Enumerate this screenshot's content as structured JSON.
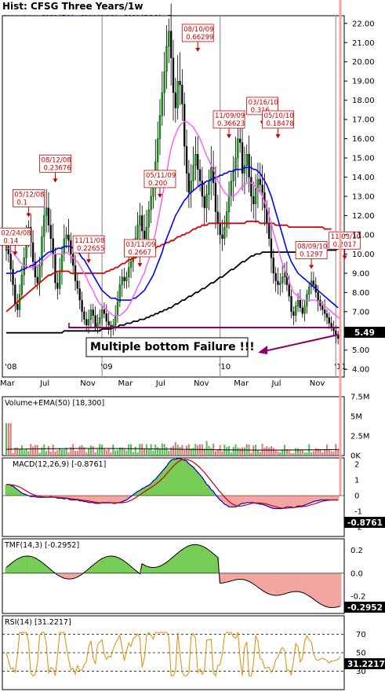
{
  "chart_title": "Hist: CFSG Three Years/1w",
  "legend": [
    {
      "label": "SMA(20)",
      "color": "#ff55ff"
    },
    {
      "label": "SMA(50)",
      "color": "#0000ff"
    },
    {
      "label": "SMA(100)",
      "color": "#dd0000"
    },
    {
      "label": "SMA(200)",
      "color": "#000000"
    },
    {
      "label": "Earn",
      "color": "#cc0000"
    }
  ],
  "callout": "Multiple bottom Failure !!!",
  "last_price_label": "5.49",
  "colors": {
    "up": "#00aa00",
    "down": "#000000",
    "border": "#000000",
    "grid": "#888888"
  },
  "chart_data": {
    "type": "line",
    "price_axis": {
      "ylim": [
        3.6,
        22.4
      ],
      "ticks": [
        "4.00",
        "5.00",
        "6.00",
        "7.00",
        "8.00",
        "9.00",
        "10.00",
        "11.00",
        "12.00",
        "13.00",
        "14.00",
        "15.00",
        "16.00",
        "17.00",
        "18.00",
        "19.00",
        "20.00",
        "21.00",
        "22.00"
      ]
    },
    "x_ticks": [
      {
        "label": "'08",
        "week": 0
      },
      {
        "label": "Mar",
        "week": 0
      },
      {
        "label": "Jul",
        "week": 18
      },
      {
        "label": "Nov",
        "week": 36
      },
      {
        "label": "'09",
        "week": 43
      },
      {
        "label": "Mar",
        "week": 53
      },
      {
        "label": "Jul",
        "week": 70
      },
      {
        "label": "Nov",
        "week": 87
      },
      {
        "label": "'10",
        "week": 96
      },
      {
        "label": "Mar",
        "week": 105
      },
      {
        "label": "Jul",
        "week": 122
      },
      {
        "label": "Nov",
        "week": 139
      },
      {
        "label": "'11",
        "week": 148
      }
    ],
    "close": [
      10.4,
      10.0,
      9.2,
      8.4,
      7.4,
      7.1,
      7.9,
      8.9,
      9.8,
      10.9,
      11.4,
      10.6,
      9.6,
      8.8,
      8.5,
      9.4,
      10.9,
      12.0,
      12.4,
      11.5,
      10.8,
      10.0,
      8.5,
      8.2,
      9.1,
      10.0,
      10.8,
      11.0,
      10.7,
      10.0,
      9.4,
      8.6,
      8.2,
      7.6,
      7.0,
      6.6,
      6.3,
      6.6,
      7.1,
      6.8,
      6.2,
      6.4,
      6.7,
      7.1,
      6.9,
      6.5,
      6.3,
      6.1,
      6.3,
      6.8,
      7.5,
      8.4,
      8.8,
      8.6,
      8.8,
      9.3,
      9.6,
      10.2,
      10.8,
      11.5,
      12.0,
      11.2,
      10.8,
      11.4,
      12.3,
      13.0,
      13.6,
      14.8,
      16.0,
      17.2,
      18.4,
      19.5,
      20.8,
      21.6,
      20.2,
      18.4,
      17.6,
      19.0,
      18.8,
      17.8,
      15.6,
      14.2,
      13.2,
      13.8,
      14.6,
      15.2,
      14.4,
      13.8,
      13.0,
      12.4,
      13.1,
      13.8,
      14.5,
      13.7,
      12.2,
      11.6,
      11.0,
      10.8,
      11.4,
      12.2,
      13.0,
      13.8,
      14.4,
      15.0,
      16.0,
      15.8,
      14.2,
      14.6,
      15.2,
      14.0,
      13.0,
      12.6,
      13.4,
      13.9,
      13.6,
      13.2,
      12.4,
      11.6,
      10.8,
      9.8,
      9.0,
      8.6,
      8.4,
      8.5,
      8.8,
      9.0,
      8.4,
      7.8,
      7.0,
      6.8,
      7.3,
      7.6,
      7.2,
      6.9,
      7.3,
      7.9,
      8.3,
      8.6,
      8.4,
      8.0,
      7.6,
      7.3,
      7.1,
      6.9,
      6.7,
      6.4,
      6.2,
      6.0,
      5.8,
      5.6,
      5.49
    ],
    "sma20": [
      10.3,
      10.3,
      10.2,
      10.1,
      9.9,
      9.8,
      9.6,
      9.5,
      9.4,
      9.4,
      9.3,
      9.3,
      9.3,
      9.4,
      9.4,
      9.5,
      9.6,
      9.7,
      9.8,
      9.9,
      10.0,
      10.0,
      10.0,
      10.0,
      10.0,
      10.0,
      10.0,
      10.1,
      10.0,
      9.9,
      9.8,
      9.7,
      9.6,
      9.4,
      9.2,
      9.0,
      8.8,
      8.5,
      8.3,
      8.1,
      7.8,
      7.6,
      7.4,
      7.3,
      7.2,
      7.1,
      7.0,
      6.9,
      6.8,
      6.8,
      6.8,
      6.8,
      6.9,
      7.0,
      7.1,
      7.3,
      7.5,
      7.8,
      8.0,
      8.3,
      8.5,
      8.8,
      9.0,
      9.4,
      9.7,
      10.1,
      10.6,
      11.1,
      11.7,
      12.3,
      12.9,
      13.6,
      14.2,
      14.9,
      15.5,
      15.9,
      16.2,
      16.5,
      16.7,
      16.8,
      16.9,
      16.9,
      16.8,
      16.7,
      16.6,
      16.4,
      16.2,
      16.0,
      15.7,
      15.4,
      15.1,
      14.9,
      14.6,
      14.4,
      14.1,
      13.8,
      13.6,
      13.4,
      13.2,
      13.1,
      13.0,
      13.0,
      13.0,
      13.1,
      13.2,
      13.4,
      13.5,
      13.6,
      13.7,
      13.7,
      13.7,
      13.6,
      13.5,
      13.4,
      13.2,
      13.0,
      12.7,
      12.4,
      12.0,
      11.6,
      11.1,
      10.7,
      10.3,
      9.9,
      9.5,
      9.2,
      8.9,
      8.6,
      8.3,
      8.0,
      7.9,
      7.8,
      7.7,
      7.6,
      7.6,
      7.6,
      7.6,
      7.6,
      7.6,
      7.6,
      7.5,
      7.5,
      7.4,
      7.3,
      7.2,
      7.1,
      7.0,
      6.9,
      6.8,
      6.7,
      6.6
    ],
    "sma50": [
      9.0,
      9.0,
      9.0,
      9.0,
      9.0,
      9.1,
      9.1,
      9.2,
      9.2,
      9.3,
      9.3,
      9.4,
      9.4,
      9.5,
      9.6,
      9.7,
      9.8,
      9.9,
      10.0,
      10.1,
      10.1,
      10.2,
      10.2,
      10.3,
      10.3,
      10.3,
      10.4,
      10.4,
      10.4,
      10.4,
      10.3,
      10.2,
      10.1,
      10.0,
      9.8,
      9.7,
      9.5,
      9.3,
      9.1,
      8.9,
      8.7,
      8.5,
      8.3,
      8.1,
      8.0,
      7.9,
      7.8,
      7.7,
      7.7,
      7.7,
      7.6,
      7.6,
      7.6,
      7.6,
      7.6,
      7.6,
      7.6,
      7.7,
      7.7,
      7.8,
      7.9,
      8.0,
      8.1,
      8.3,
      8.5,
      8.7,
      8.9,
      9.2,
      9.5,
      9.8,
      10.1,
      10.5,
      10.8,
      11.1,
      11.4,
      11.7,
      12.0,
      12.2,
      12.4,
      12.6,
      12.8,
      12.9,
      13.1,
      13.2,
      13.3,
      13.4,
      13.5,
      13.6,
      13.6,
      13.7,
      13.8,
      13.8,
      13.9,
      13.9,
      14.0,
      14.0,
      14.1,
      14.1,
      14.2,
      14.2,
      14.3,
      14.3,
      14.3,
      14.4,
      14.4,
      14.4,
      14.4,
      14.5,
      14.5,
      14.5,
      14.5,
      14.4,
      14.4,
      14.3,
      14.2,
      14.0,
      13.8,
      13.6,
      13.3,
      13.0,
      12.6,
      12.2,
      11.8,
      11.4,
      11.0,
      10.6,
      10.2,
      9.9,
      9.6,
      9.4,
      9.2,
      9.0,
      8.9,
      8.8,
      8.7,
      8.6,
      8.5,
      8.4,
      8.3,
      8.2,
      8.1,
      8.0,
      7.9,
      7.8,
      7.7,
      7.6,
      7.5,
      7.4,
      7.3,
      7.2
    ],
    "sma100": [
      7.0,
      7.1,
      7.2,
      7.3,
      7.4,
      7.5,
      7.6,
      7.7,
      7.8,
      7.9,
      8.0,
      8.1,
      8.2,
      8.3,
      8.4,
      8.5,
      8.6,
      8.7,
      8.8,
      8.9,
      8.9,
      9.0,
      9.0,
      9.1,
      9.1,
      9.1,
      9.1,
      9.1,
      9.1,
      9.0,
      9.0,
      9.0,
      9.0,
      9.0,
      9.0,
      9.0,
      9.0,
      9.0,
      9.0,
      9.0,
      9.0,
      9.0,
      9.0,
      9.0,
      9.0,
      9.1,
      9.1,
      9.2,
      9.2,
      9.3,
      9.3,
      9.4,
      9.5,
      9.5,
      9.6,
      9.7,
      9.7,
      9.8,
      9.8,
      9.9,
      10.0,
      10.0,
      10.1,
      10.1,
      10.2,
      10.2,
      10.3,
      10.3,
      10.4,
      10.4,
      10.5,
      10.5,
      10.6,
      10.6,
      10.7,
      10.7,
      10.8,
      10.9,
      10.9,
      11.0,
      11.0,
      11.1,
      11.1,
      11.2,
      11.3,
      11.3,
      11.4,
      11.4,
      11.5,
      11.5,
      11.5,
      11.6,
      11.6,
      11.6,
      11.6,
      11.6,
      11.6,
      11.6,
      11.6,
      11.6,
      11.6,
      11.6,
      11.6,
      11.6,
      11.6,
      11.6,
      11.6,
      11.6,
      11.7,
      11.7,
      11.7,
      11.7,
      11.7,
      11.7,
      11.6,
      11.6,
      11.6,
      11.6,
      11.6,
      11.6,
      11.6,
      11.5,
      11.5,
      11.5,
      11.5,
      11.5,
      11.5,
      11.4,
      11.4,
      11.4,
      11.4,
      11.4,
      11.4,
      11.4,
      11.4,
      11.4,
      11.4,
      11.4,
      11.4,
      11.4,
      11.4,
      11.4,
      11.4,
      11.3,
      11.3,
      11.3,
      11.3
    ],
    "sma200": [
      5.9,
      5.9,
      5.9,
      5.9,
      5.9,
      5.9,
      5.9,
      5.9,
      5.9,
      5.9,
      5.9,
      5.9,
      5.9,
      5.9,
      5.9,
      5.9,
      5.9,
      5.9,
      5.9,
      5.9,
      5.9,
      5.9,
      5.9,
      5.9,
      5.9,
      5.9,
      6.0,
      6.0,
      6.0,
      6.0,
      6.0,
      6.0,
      6.0,
      6.0,
      6.0,
      6.0,
      6.0,
      6.0,
      6.0,
      6.0,
      6.0,
      6.0,
      6.0,
      6.1,
      6.1,
      6.1,
      6.1,
      6.1,
      6.2,
      6.2,
      6.2,
      6.3,
      6.3,
      6.3,
      6.4,
      6.4,
      6.4,
      6.5,
      6.5,
      6.5,
      6.6,
      6.6,
      6.6,
      6.7,
      6.7,
      6.8,
      6.8,
      6.9,
      6.9,
      7.0,
      7.0,
      7.1,
      7.1,
      7.2,
      7.2,
      7.3,
      7.4,
      7.4,
      7.5,
      7.6,
      7.6,
      7.7,
      7.8,
      7.8,
      7.9,
      8.0,
      8.0,
      8.1,
      8.2,
      8.2,
      8.3,
      8.4,
      8.5,
      8.5,
      8.6,
      8.7,
      8.8,
      8.8,
      8.9,
      9.0,
      9.1,
      9.2,
      9.2,
      9.3,
      9.4,
      9.5,
      9.6,
      9.6,
      9.7,
      9.8,
      9.9,
      9.9,
      10.0,
      10.0,
      10.0,
      10.1,
      10.1,
      10.1,
      10.1,
      10.1,
      10.1,
      10.1,
      10.1,
      10.1,
      10.1,
      10.1,
      10.1,
      10.1,
      10.1,
      10.1,
      10.1,
      10.1,
      10.1,
      10.1,
      10.1,
      10.1,
      10.1,
      10.2,
      10.2,
      10.2,
      10.2,
      10.2,
      10.2,
      10.2,
      10.2,
      10.2,
      10.2,
      10.2,
      10.2,
      10.3
    ],
    "earnings": [
      {
        "date": "02/24/08",
        "value": "0.14",
        "week": 4,
        "price": 9.8
      },
      {
        "date": "05/12/08",
        "value": "0.1",
        "week": 10,
        "price": 11.8
      },
      {
        "date": "08/12/08",
        "value": "0.23676",
        "week": 22,
        "price": 13.6
      },
      {
        "date": "11/11/08",
        "value": "0.22655",
        "week": 37,
        "price": 9.4
      },
      {
        "date": "03/11/09",
        "value": "0.2667",
        "week": 60,
        "price": 9.2
      },
      {
        "date": "05/11/09",
        "value": "0.200",
        "week": 69,
        "price": 12.8
      },
      {
        "date": "08/10/09",
        "value": "0.66299",
        "week": 86,
        "price": 20.4
      },
      {
        "date": "11/09/09",
        "value": "0.36623",
        "week": 100,
        "price": 15.9
      },
      {
        "date": "03/16/10",
        "value": "0.316",
        "week": 115,
        "price": 16.6
      },
      {
        "date": "05/10/10",
        "value": "0.18478",
        "week": 122,
        "price": 15.9
      },
      {
        "date": "08/09/10",
        "value": "0.1297",
        "week": 137,
        "price": 9.1
      },
      {
        "date": "11/03/10",
        "value": "0.2017",
        "week": 152,
        "price": 9.6
      }
    ],
    "volume": {
      "label": "Volume+EMA(50)",
      "last_value": "18,300",
      "ticks": [
        "7.5M",
        "5M",
        "2.5M",
        "0K"
      ],
      "ylim": [
        0,
        7.5
      ]
    },
    "macd": {
      "label": "MACD(12,26,9)",
      "last_value": "-0.8761",
      "ticks": [
        "2",
        "1",
        "0",
        "-1",
        "-2"
      ],
      "ylim": [
        -2.6,
        2.4
      ]
    },
    "tmf": {
      "label": "TMF(14,3)",
      "last_value": "-0.2952",
      "ticks": [
        "0.2",
        "0.0",
        "-0.2"
      ],
      "ylim": [
        -0.35,
        0.3
      ]
    },
    "rsi": {
      "label": "RSI(14)",
      "last_value": "31.2217",
      "ticks": [
        "70",
        "50",
        "30"
      ],
      "ylim": [
        10,
        90
      ]
    }
  }
}
